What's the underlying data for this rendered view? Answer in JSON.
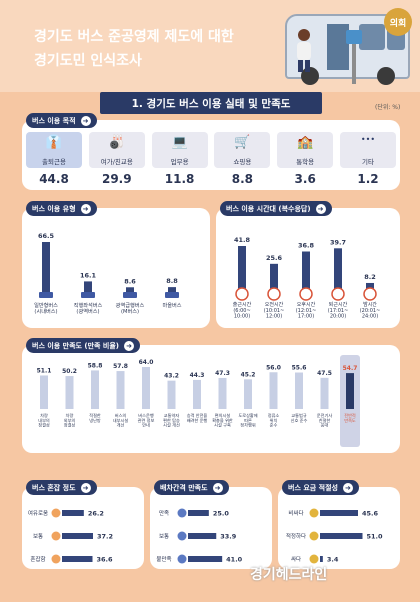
{
  "header": {
    "title_line1": "경기도 버스 준공영제 제도에 대한",
    "title_line2": "경기도민 인식조사",
    "seal_text": "의회",
    "section_title": "1. 경기도 버스 이용 실태 및 만족도",
    "unit": "(단위: %)"
  },
  "colors": {
    "navy": "#2a3a66",
    "bar": "#33457a",
    "highlight": "#cfd3e6",
    "background": "#f6c7a3"
  },
  "chart_data": [
    {
      "type": "table",
      "title": "버스 이용 목적",
      "categories": [
        "출퇴근용",
        "여가/친교용",
        "업무용",
        "쇼핑용",
        "통학용",
        "기타"
      ],
      "values": [
        44.8,
        29.9,
        11.8,
        8.8,
        3.6,
        1.2
      ],
      "icons": [
        "commuter-icon",
        "bowling-icon",
        "office-worker-icon",
        "shopping-cart-icon",
        "school-icon",
        "more-icon"
      ]
    },
    {
      "type": "bar",
      "title": "버스 이용 유형",
      "categories": [
        "일반형버스\n(시내버스)",
        "직행좌석버스\n(광역버스)",
        "광역급행버스\n(M버스)",
        "마을버스"
      ],
      "values": [
        66.5,
        16.1,
        8.6,
        8.8
      ]
    },
    {
      "type": "bar",
      "title": "버스 이용 시간대 (복수응답)",
      "categories": [
        "출근시간\n(6:00~\n10:00)",
        "오전시간\n(10:01~\n12:00)",
        "오후시간\n(12:01~\n17:00)",
        "퇴근시간\n(17:01~\n20:00)",
        "밤시간\n(20:01~\n24:00)"
      ],
      "values": [
        41.8,
        25.6,
        36.8,
        39.7,
        8.2
      ]
    },
    {
      "type": "bar",
      "title": "버스 이용 만족도 (만족 비율)",
      "categories": [
        "차량\n내부의\n청결성",
        "차량\n외부의\n청결성",
        "적절한\n냉난방",
        "버스의\n내부시설\n개선",
        "버스운행\n관련 정보\n안내",
        "교통약자\n편한 탑승\n시설 개선",
        "승객 안전을\n배려한 운행",
        "편의시설\n확충을 위한\n시설 구축",
        "도로상황에\n따른\n정차행위",
        "정류소\n위치\n준수",
        "교통법규\n신호 준수",
        "운전기사\n친절한\n응대",
        "전반적\n만족도"
      ],
      "values": [
        51.1,
        50.2,
        58.8,
        57.8,
        64.0,
        43.2,
        44.3,
        47.3,
        45.2,
        56.0,
        55.6,
        47.5,
        54.7
      ]
    },
    {
      "type": "bar",
      "title": "버스 혼잡 정도",
      "categories": [
        "여유로움",
        "보통",
        "혼잡함"
      ],
      "values": [
        26.2,
        37.2,
        36.6
      ]
    },
    {
      "type": "bar",
      "title": "배차간격 만족도",
      "categories": [
        "만족",
        "보통",
        "불만족"
      ],
      "values": [
        25.0,
        33.9,
        41.0
      ]
    },
    {
      "type": "bar",
      "title": "버스 요금 적절성",
      "categories": [
        "비싸다",
        "적정하다",
        "싸다"
      ],
      "values": [
        45.6,
        51.0,
        3.4
      ]
    }
  ],
  "footer": {
    "watermark": "경기헤드라인"
  }
}
